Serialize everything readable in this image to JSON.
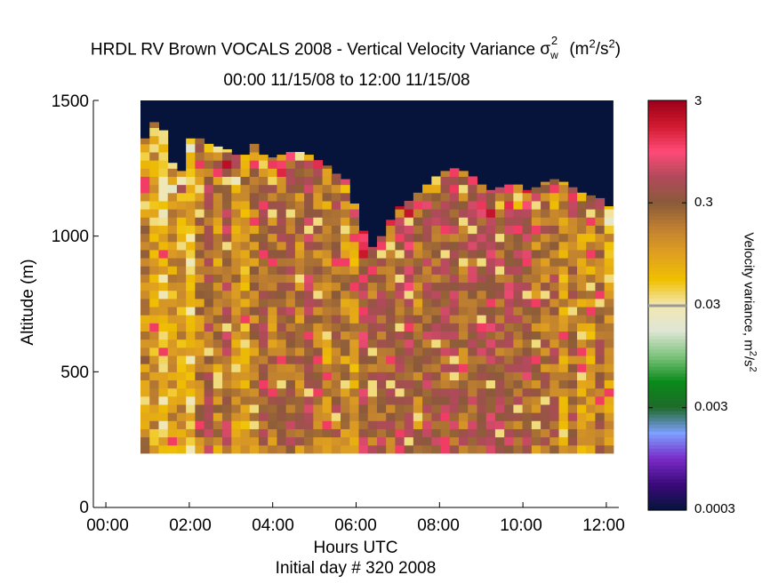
{
  "chart_data": {
    "type": "heatmap",
    "title": "HRDL RV Brown VOCALS 2008 - Vertical Velocity Variance",
    "title_symbol": "σ",
    "title_symbol_sub": "w",
    "title_symbol_sup": "2",
    "title_unit_prefix": "(m",
    "title_unit_sup1": "2",
    "title_unit_mid": "/s",
    "title_unit_sup2": "2",
    "title_unit_suffix": ")",
    "subtitle": "00:00 11/15/08 to 12:00 11/15/08",
    "xlabel": "Hours UTC",
    "xlabel2": "Initial day # 320  2008",
    "ylabel": "Altitude (m)",
    "xlim": [
      -0.3,
      12.3
    ],
    "ylim": [
      0,
      1500
    ],
    "x_ticks": [
      "00:00",
      "02:00",
      "04:00",
      "06:00",
      "08:00",
      "10:00",
      "12:00"
    ],
    "y_ticks": [
      "0",
      "500",
      "1000",
      "1500"
    ],
    "grid": false,
    "colorbar": {
      "label": "Velocity variance, m",
      "label_sup1": "2",
      "label_mid": "/s",
      "label_sup2": "2",
      "scale": "log",
      "range": [
        0.0003,
        3
      ],
      "ticks": [
        "3",
        "0.3",
        "0.03",
        "0.003",
        "0.0003"
      ]
    },
    "background_color": "#06143c",
    "data_region": {
      "x_start": 0.83,
      "x_end": 12.17,
      "y_bottom": 200
    },
    "column_width_hours": 0.18,
    "row_height_m": 30,
    "column_tops_m": [
      1360,
      1420,
      1390,
      1270,
      1240,
      1360,
      1360,
      1340,
      1330,
      1320,
      1300,
      1300,
      1340,
      1300,
      1290,
      1300,
      1310,
      1310,
      1300,
      1280,
      1260,
      1230,
      1210,
      1120,
      1020,
      960,
      1000,
      1060,
      1110,
      1130,
      1160,
      1190,
      1220,
      1240,
      1250,
      1240,
      1220,
      1190,
      1170,
      1180,
      1190,
      1190,
      1170,
      1180,
      1200,
      1210,
      1200,
      1180,
      1160,
      1150,
      1140,
      1110
    ],
    "value_range_log10": [
      -3.5,
      0.5
    ],
    "typical_log10": -0.7
  },
  "colors": {
    "colormap": [
      "#06143c",
      "#3a0a7a",
      "#7a2ac8",
      "#7ea0ff",
      "#1f6a2a",
      "#0a8a1a",
      "#7cc47c",
      "#dfe6d6",
      "#f2e8b0",
      "#f0c000",
      "#e0a020",
      "#c08030",
      "#8a5a3a",
      "#b04a5a",
      "#ff4a78",
      "#d01a30",
      "#9a0018"
    ],
    "axis": "#000000"
  }
}
